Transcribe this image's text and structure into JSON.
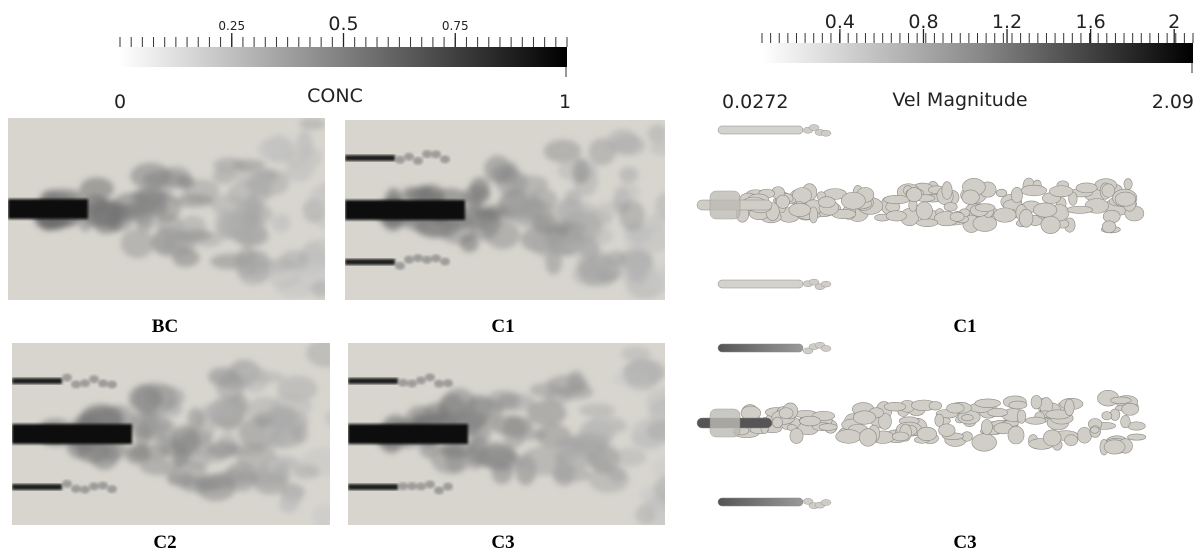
{
  "colorbars": [
    {
      "title": "CONC",
      "min": 0,
      "max": 1,
      "ticks": [
        0.25,
        0.5,
        0.75
      ]
    },
    {
      "title": "Vel Magnitude",
      "min": 0.0272,
      "max": 2.09,
      "ticks": [
        0.4,
        0.8,
        1.2,
        1.6,
        2
      ]
    }
  ],
  "panels": [
    {
      "label": "BC"
    },
    {
      "label": "C1"
    },
    {
      "label": "C2"
    },
    {
      "label": "C3"
    },
    {
      "label": "C1"
    },
    {
      "label": "C3"
    }
  ]
}
